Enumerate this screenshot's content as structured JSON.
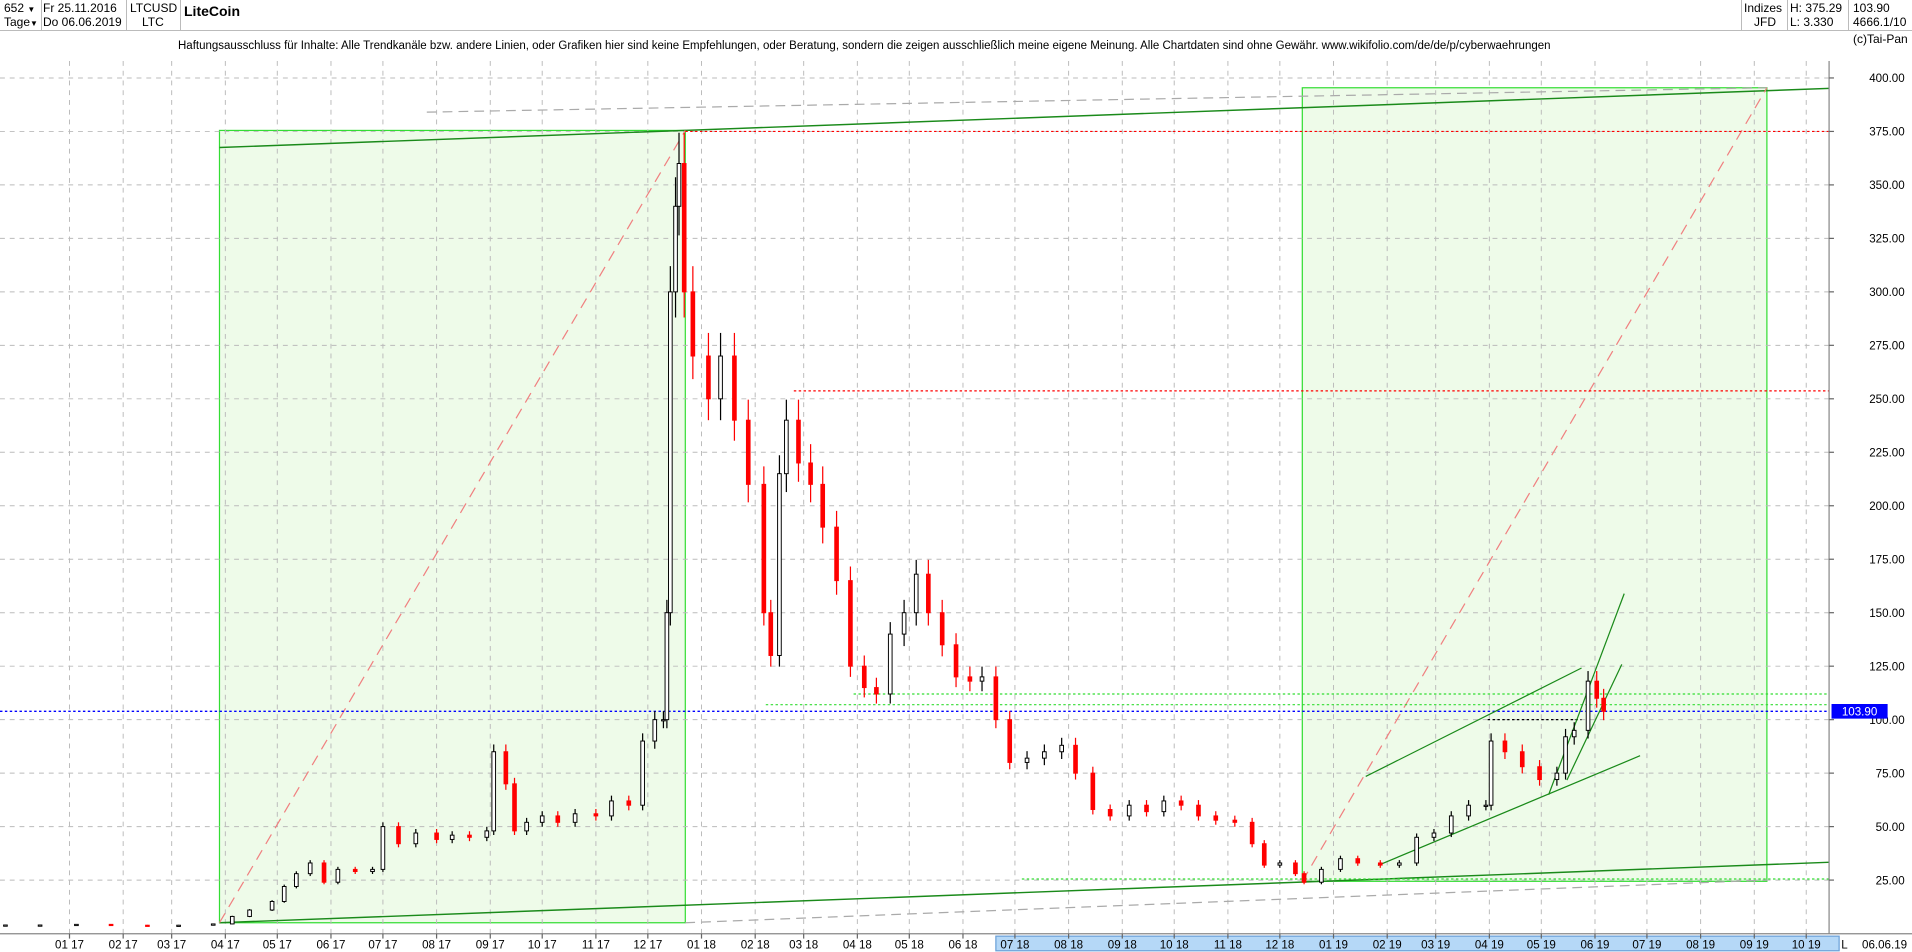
{
  "header": {
    "count": "652",
    "period": "Tage",
    "date_from": "Fr 25.11.2016",
    "date_to": "Do 06.06.2019",
    "symbol": "LTCUSD",
    "short": "LTC",
    "title": "LiteCoin",
    "group": "Indizes",
    "source": "JFD",
    "high": "H: 375.29",
    "low": "L: 3.330",
    "last": "103.90",
    "ref": "4666.1/10",
    "copyright": "(c)Tai-Pan"
  },
  "disclaimer": "Haftungsausschluss für Inhalte: Alle Trendkanäle bzw. andere Linien, oder Grafiken hier sind keine Empfehlungen, oder Beratung, sondern die zeigen ausschließlich meine eigene Meinung. Alle Chartdaten sind ohne Gewähr.  www.wikifolio.com/de/de/p/cyberwaehrungen",
  "chart_data": {
    "type": "candlestick",
    "title": "LiteCoin",
    "ylim": [
      0,
      410
    ],
    "grid": true,
    "y_ticks": [
      "25.00",
      "50.00",
      "75.00",
      "100.00",
      "125.00",
      "150.00",
      "175.00",
      "200.00",
      "225.00",
      "250.00",
      "275.00",
      "300.00",
      "325.00",
      "350.00",
      "375.00",
      "400.00"
    ],
    "x_ticks": [
      {
        "label": "01 17",
        "date": "2017-01-01"
      },
      {
        "label": "02 17",
        "date": "2017-02-01"
      },
      {
        "label": "03 17",
        "date": "2017-03-01"
      },
      {
        "label": "04 17",
        "date": "2017-04-01"
      },
      {
        "label": "05 17",
        "date": "2017-05-01"
      },
      {
        "label": "06 17",
        "date": "2017-06-01"
      },
      {
        "label": "07 17",
        "date": "2017-07-01"
      },
      {
        "label": "08 17",
        "date": "2017-08-01"
      },
      {
        "label": "09 17",
        "date": "2017-09-01"
      },
      {
        "label": "10 17",
        "date": "2017-10-01"
      },
      {
        "label": "11 17",
        "date": "2017-11-01"
      },
      {
        "label": "12 17",
        "date": "2017-12-01"
      },
      {
        "label": "01 18",
        "date": "2018-01-01"
      },
      {
        "label": "02 18",
        "date": "2018-02-01"
      },
      {
        "label": "03 18",
        "date": "2018-03-01"
      },
      {
        "label": "04 18",
        "date": "2018-04-01"
      },
      {
        "label": "05 18",
        "date": "2018-05-01"
      },
      {
        "label": "06 18",
        "date": "2018-06-01"
      },
      {
        "label": "07 18",
        "date": "2018-07-01"
      },
      {
        "label": "08 18",
        "date": "2018-08-01"
      },
      {
        "label": "09 18",
        "date": "2018-09-01"
      },
      {
        "label": "10 18",
        "date": "2018-10-01"
      },
      {
        "label": "11 18",
        "date": "2018-11-01"
      },
      {
        "label": "12 18",
        "date": "2018-12-01"
      },
      {
        "label": "01 19",
        "date": "2019-01-01"
      },
      {
        "label": "02 19",
        "date": "2019-02-01"
      },
      {
        "label": "03 19",
        "date": "2019-03-01"
      },
      {
        "label": "04 19",
        "date": "2019-04-01"
      },
      {
        "label": "05 19",
        "date": "2019-05-01"
      },
      {
        "label": "06 19",
        "date": "2019-06-01"
      },
      {
        "label": "07 19",
        "date": "2019-07-01"
      },
      {
        "label": "08 19",
        "date": "2019-08-01"
      },
      {
        "label": "09 19",
        "date": "2019-09-01"
      },
      {
        "label": "10 19",
        "date": "2019-10-01"
      }
    ],
    "axis_end_marker": "L",
    "axis_end_date": "06.06.19",
    "last_price_label": "103.90",
    "levels": {
      "high": 375,
      "feb_high": 253.7,
      "last": 103.9
    },
    "colors": {
      "up": "#000000",
      "down": "#ff0000",
      "last": "#0000ff",
      "zone_fill": "#eefbe9",
      "zone_stroke": "#33dd33",
      "trend": "#1a8a1a"
    },
    "series": [
      [
        "2016-11-25",
        4.0
      ],
      [
        "2016-12-15",
        4.0
      ],
      [
        "2017-01-05",
        4.3
      ],
      [
        "2017-01-25",
        3.9
      ],
      [
        "2017-02-15",
        3.8
      ],
      [
        "2017-03-05",
        3.9
      ],
      [
        "2017-03-25",
        4.5
      ],
      [
        "2017-04-05",
        8
      ],
      [
        "2017-04-15",
        11
      ],
      [
        "2017-04-28",
        15
      ],
      [
        "2017-05-05",
        22
      ],
      [
        "2017-05-12",
        28
      ],
      [
        "2017-05-20",
        33
      ],
      [
        "2017-05-28",
        24
      ],
      [
        "2017-06-05",
        30
      ],
      [
        "2017-06-15",
        29
      ],
      [
        "2017-06-25",
        30
      ],
      [
        "2017-07-01",
        50
      ],
      [
        "2017-07-10",
        42
      ],
      [
        "2017-07-20",
        47
      ],
      [
        "2017-08-01",
        44
      ],
      [
        "2017-08-10",
        46
      ],
      [
        "2017-08-20",
        45
      ],
      [
        "2017-08-30",
        48
      ],
      [
        "2017-09-03",
        85
      ],
      [
        "2017-09-10",
        70
      ],
      [
        "2017-09-15",
        48
      ],
      [
        "2017-09-22",
        52
      ],
      [
        "2017-10-01",
        55
      ],
      [
        "2017-10-10",
        52
      ],
      [
        "2017-10-20",
        56
      ],
      [
        "2017-11-01",
        55
      ],
      [
        "2017-11-10",
        62
      ],
      [
        "2017-11-20",
        60
      ],
      [
        "2017-11-28",
        90
      ],
      [
        "2017-12-05",
        100
      ],
      [
        "2017-12-10",
        100
      ],
      [
        "2017-12-12",
        150
      ],
      [
        "2017-12-14",
        300
      ],
      [
        "2017-12-17",
        340
      ],
      [
        "2017-12-19",
        360
      ],
      [
        "2017-12-22",
        300
      ],
      [
        "2017-12-27",
        270
      ],
      [
        "2018-01-05",
        250
      ],
      [
        "2018-01-12",
        270
      ],
      [
        "2018-01-20",
        240
      ],
      [
        "2018-01-28",
        210
      ],
      [
        "2018-02-06",
        150
      ],
      [
        "2018-02-10",
        130
      ],
      [
        "2018-02-15",
        215
      ],
      [
        "2018-02-19",
        240
      ],
      [
        "2018-02-26",
        220
      ],
      [
        "2018-03-05",
        210
      ],
      [
        "2018-03-12",
        190
      ],
      [
        "2018-03-20",
        165
      ],
      [
        "2018-03-28",
        125
      ],
      [
        "2018-04-05",
        115
      ],
      [
        "2018-04-12",
        112
      ],
      [
        "2018-04-20",
        140
      ],
      [
        "2018-04-28",
        150
      ],
      [
        "2018-05-05",
        168
      ],
      [
        "2018-05-12",
        150
      ],
      [
        "2018-05-20",
        135
      ],
      [
        "2018-05-28",
        120
      ],
      [
        "2018-06-05",
        118
      ],
      [
        "2018-06-12",
        120
      ],
      [
        "2018-06-20",
        100
      ],
      [
        "2018-06-28",
        80
      ],
      [
        "2018-07-08",
        82
      ],
      [
        "2018-07-18",
        85
      ],
      [
        "2018-07-28",
        88
      ],
      [
        "2018-08-05",
        75
      ],
      [
        "2018-08-15",
        58
      ],
      [
        "2018-08-25",
        55
      ],
      [
        "2018-09-05",
        60
      ],
      [
        "2018-09-15",
        57
      ],
      [
        "2018-09-25",
        62
      ],
      [
        "2018-10-05",
        60
      ],
      [
        "2018-10-15",
        55
      ],
      [
        "2018-10-25",
        53
      ],
      [
        "2018-11-05",
        52
      ],
      [
        "2018-11-15",
        42
      ],
      [
        "2018-11-22",
        32
      ],
      [
        "2018-12-01",
        33
      ],
      [
        "2018-12-10",
        28
      ],
      [
        "2018-12-15",
        24
      ],
      [
        "2018-12-25",
        30
      ],
      [
        "2019-01-05",
        35
      ],
      [
        "2019-01-15",
        33
      ],
      [
        "2019-01-28",
        32
      ],
      [
        "2019-02-08",
        33
      ],
      [
        "2019-02-18",
        45
      ],
      [
        "2019-02-28",
        47
      ],
      [
        "2019-03-10",
        55
      ],
      [
        "2019-03-20",
        60
      ],
      [
        "2019-03-30",
        60
      ],
      [
        "2019-04-02",
        90
      ],
      [
        "2019-04-10",
        85
      ],
      [
        "2019-04-20",
        78
      ],
      [
        "2019-04-30",
        72
      ],
      [
        "2019-05-10",
        75
      ],
      [
        "2019-05-15",
        92
      ],
      [
        "2019-05-20",
        95
      ],
      [
        "2019-05-28",
        118
      ],
      [
        "2019-06-02",
        110
      ],
      [
        "2019-06-06",
        103.9
      ]
    ]
  }
}
